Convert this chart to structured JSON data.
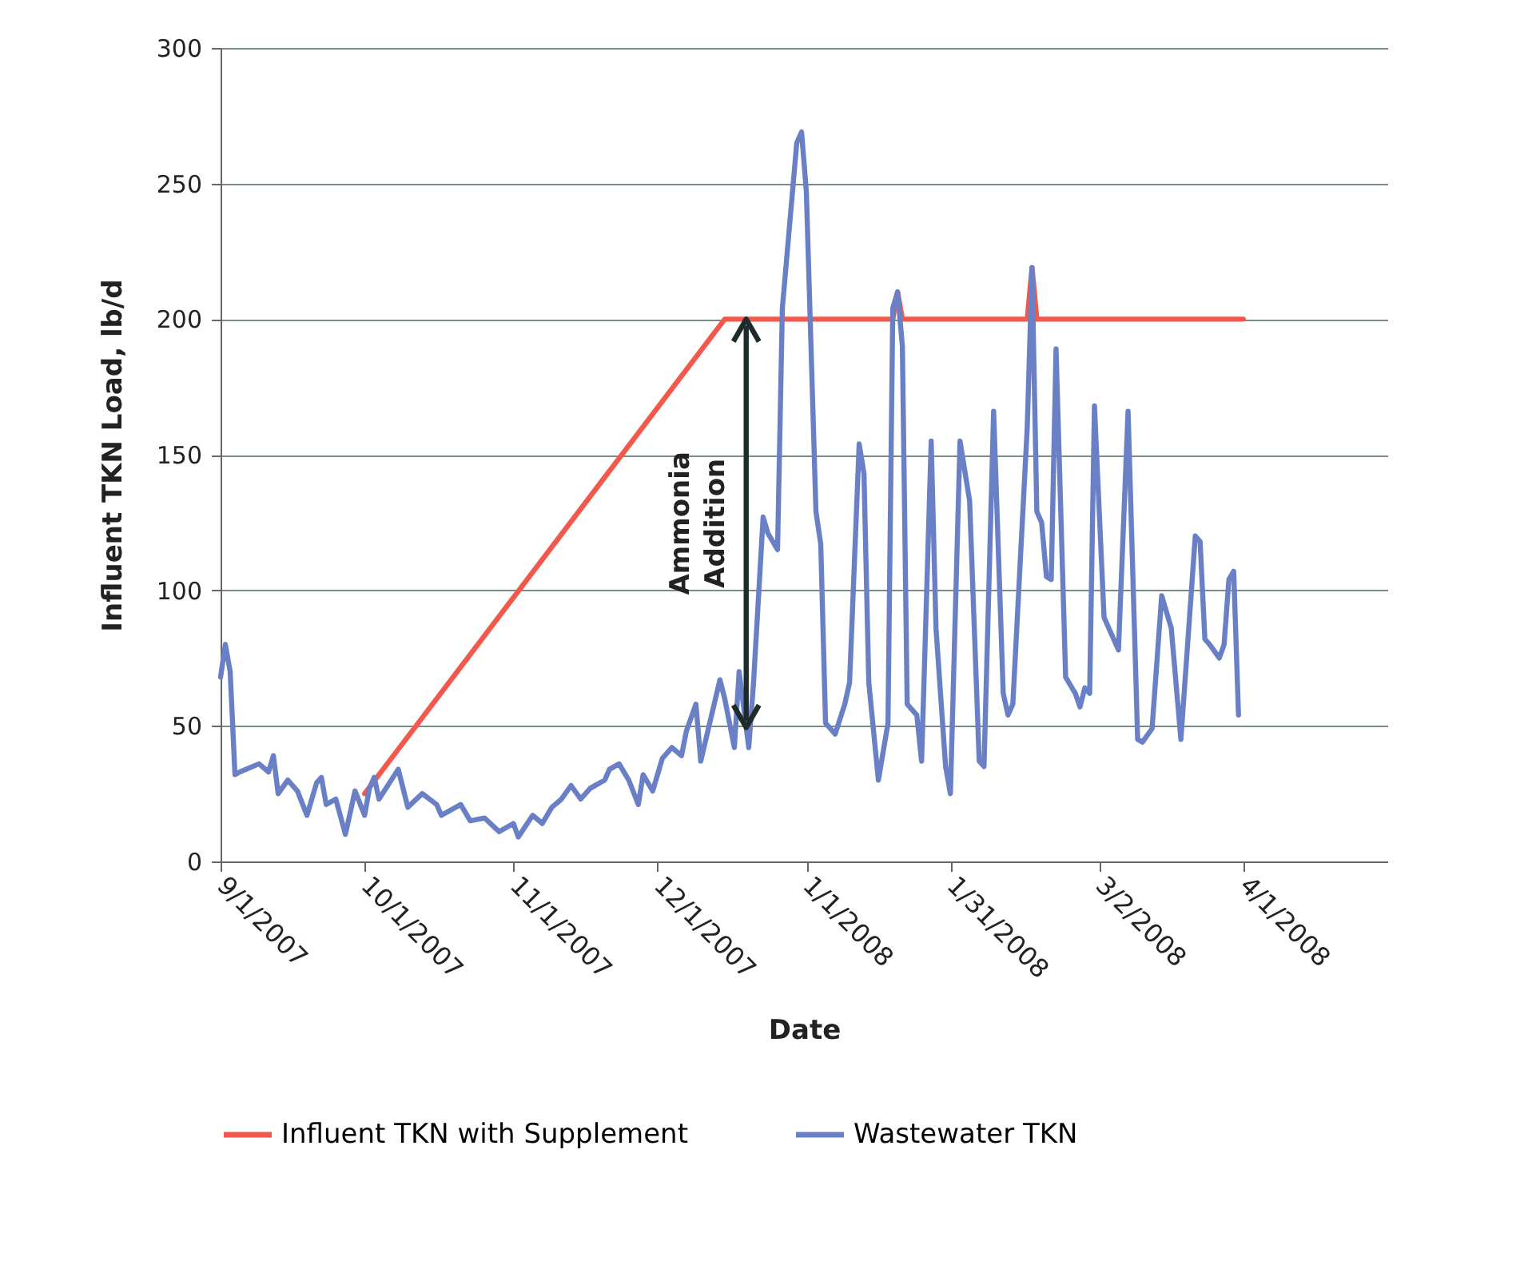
{
  "chart_data": {
    "type": "line",
    "xlabel": "Date",
    "ylabel": "Influent TKN Load, lb/d",
    "xlim": [
      "2007-09-01",
      "2008-05-01"
    ],
    "ylim": [
      0,
      300
    ],
    "yticks": [
      0,
      50,
      100,
      150,
      200,
      250,
      300
    ],
    "xticks": [
      {
        "value": "2007-09-01",
        "label": "9/1/2007"
      },
      {
        "value": "2007-10-01",
        "label": "10/1/2007"
      },
      {
        "value": "2007-11-01",
        "label": "11/1/2007"
      },
      {
        "value": "2007-12-01",
        "label": "12/1/2007"
      },
      {
        "value": "2008-01-01",
        "label": "1/1/2008"
      },
      {
        "value": "2008-01-31",
        "label": "1/31/2008"
      },
      {
        "value": "2008-03-02",
        "label": "3/2/2008"
      },
      {
        "value": "2008-04-01",
        "label": "4/1/2008"
      }
    ],
    "grid": "y",
    "legend": "bottom",
    "line_style": "solid",
    "marker": "none",
    "annotations": [
      "Ammonia Addition"
    ],
    "series": [
      {
        "name": "Influent TKN with Supplement",
        "color": "#f2584c",
        "x": [
          "2007-10-01",
          "2007-12-15",
          "2008-01-19",
          "2008-01-20",
          "2008-01-21",
          "2008-02-16",
          "2008-02-17",
          "2008-02-18",
          "2008-04-01"
        ],
        "values": [
          25,
          200,
          200,
          210,
          200,
          200,
          219,
          200,
          200
        ]
      },
      {
        "name": "Wastewater TKN",
        "color": "#6a80c6",
        "x": [
          "2007-09-01",
          "2007-09-02",
          "2007-09-03",
          "2007-09-04",
          "2007-09-05",
          "2007-09-09",
          "2007-09-11",
          "2007-09-12",
          "2007-09-13",
          "2007-09-15",
          "2007-09-17",
          "2007-09-19",
          "2007-09-21",
          "2007-09-22",
          "2007-09-23",
          "2007-09-25",
          "2007-09-27",
          "2007-09-29",
          "2007-10-01",
          "2007-10-02",
          "2007-10-03",
          "2007-10-04",
          "2007-10-08",
          "2007-10-10",
          "2007-10-13",
          "2007-10-16",
          "2007-10-17",
          "2007-10-21",
          "2007-10-23",
          "2007-10-26",
          "2007-10-29",
          "2007-11-01",
          "2007-11-02",
          "2007-11-05",
          "2007-11-07",
          "2007-11-09",
          "2007-11-11",
          "2007-11-13",
          "2007-11-15",
          "2007-11-17",
          "2007-11-20",
          "2007-11-21",
          "2007-11-23",
          "2007-11-25",
          "2007-11-27",
          "2007-11-28",
          "2007-11-30",
          "2007-12-02",
          "2007-12-04",
          "2007-12-06",
          "2007-12-07",
          "2007-12-09",
          "2007-12-10",
          "2007-12-12",
          "2007-12-14",
          "2007-12-15",
          "2007-12-17",
          "2007-12-18",
          "2007-12-20",
          "2007-12-21",
          "2007-12-23",
          "2007-12-24",
          "2007-12-26",
          "2007-12-27",
          "2007-12-30",
          "2007-12-31",
          "2008-01-01",
          "2008-01-03",
          "2008-01-04",
          "2008-01-05",
          "2008-01-07",
          "2008-01-09",
          "2008-01-10",
          "2008-01-12",
          "2008-01-13",
          "2008-01-14",
          "2008-01-16",
          "2008-01-18",
          "2008-01-19",
          "2008-01-20",
          "2008-01-21",
          "2008-01-22",
          "2008-01-24",
          "2008-01-25",
          "2008-01-27",
          "2008-01-28",
          "2008-01-30",
          "2008-01-31",
          "2008-02-02",
          "2008-02-04",
          "2008-02-06",
          "2008-02-07",
          "2008-02-09",
          "2008-02-11",
          "2008-02-12",
          "2008-02-13",
          "2008-02-16",
          "2008-02-17",
          "2008-02-18",
          "2008-02-19",
          "2008-02-20",
          "2008-02-21",
          "2008-02-22",
          "2008-02-24",
          "2008-02-26",
          "2008-02-27",
          "2008-02-28",
          "2008-02-29",
          "2008-03-01",
          "2008-03-03",
          "2008-03-06",
          "2008-03-08",
          "2008-03-10",
          "2008-03-11",
          "2008-03-13",
          "2008-03-15",
          "2008-03-17",
          "2008-03-19",
          "2008-03-22",
          "2008-03-23",
          "2008-03-24",
          "2008-03-25",
          "2008-03-27",
          "2008-03-28",
          "2008-03-29",
          "2008-03-30",
          "2008-03-31"
        ],
        "values": [
          68,
          80,
          70,
          32,
          33,
          36,
          33,
          39,
          25,
          30,
          26,
          17,
          29,
          31,
          21,
          23,
          10,
          26,
          17,
          27,
          31,
          23,
          34,
          20,
          25,
          21,
          17,
          21,
          15,
          16,
          11,
          14,
          9,
          17,
          14,
          20,
          23,
          28,
          23,
          27,
          30,
          34,
          36,
          30,
          21,
          32,
          26,
          38,
          42,
          39,
          48,
          58,
          37,
          52,
          67,
          60,
          42,
          70,
          42,
          66,
          127,
          121,
          115,
          204,
          265,
          269,
          247,
          129,
          117,
          51,
          47,
          58,
          66,
          154,
          143,
          66,
          30,
          51,
          204,
          210,
          190,
          58,
          54,
          37,
          155,
          86,
          35,
          25,
          155,
          133,
          37,
          35,
          166,
          62,
          54,
          58,
          160,
          219,
          129,
          125,
          105,
          104,
          189,
          68,
          62,
          57,
          64,
          62,
          168,
          90,
          78,
          166,
          45,
          44,
          49,
          98,
          86,
          45,
          120,
          118,
          82,
          80,
          75,
          80,
          104,
          107,
          54
        ]
      }
    ]
  }
}
